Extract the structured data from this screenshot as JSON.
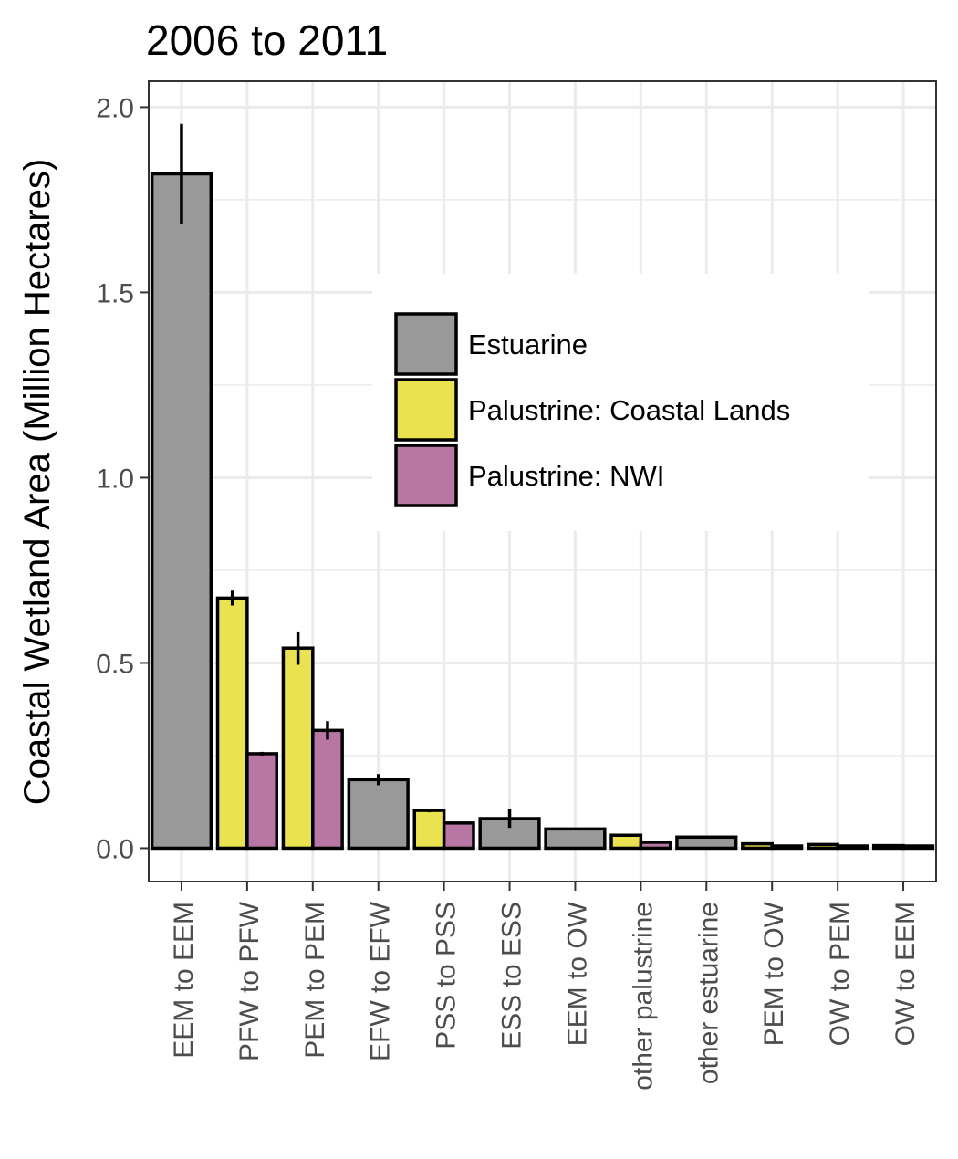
{
  "chart_data": {
    "type": "bar",
    "title": "2006 to 2011",
    "xlabel": "",
    "ylabel": "Coastal Wetland Area (Million Hectares)",
    "ylim": [
      -0.09,
      2.07
    ],
    "yticks": [
      "0.0",
      "0.5",
      "1.0",
      "1.5",
      "2.0"
    ],
    "grid": true,
    "legend_position": "center-right",
    "categories": [
      "EEM to EEM",
      "PFW to PFW",
      "PEM to PEM",
      "EFW to EFW",
      "PSS to PSS",
      "ESS to ESS",
      "EEM to OW",
      "other palustrine",
      "other estuarine",
      "PEM to OW",
      "OW to PEM",
      "OW to EEM"
    ],
    "series": [
      {
        "name": "Estuarine",
        "color": "#999999",
        "values": [
          1.82,
          null,
          null,
          0.185,
          null,
          0.08,
          0.052,
          null,
          0.03,
          null,
          null,
          null
        ],
        "errors": [
          0.135,
          null,
          null,
          0.015,
          null,
          0.025,
          null,
          null,
          null,
          null,
          null,
          null
        ]
      },
      {
        "name": "Palustrine: Coastal Lands",
        "color": "#ebe251",
        "values": [
          null,
          0.675,
          0.54,
          null,
          0.102,
          null,
          null,
          0.035,
          null,
          0.012,
          0.01,
          0.007
        ],
        "errors": [
          null,
          0.02,
          0.045,
          null,
          0.005,
          null,
          null,
          null,
          null,
          null,
          null,
          null
        ]
      },
      {
        "name": "Palustrine: NWI",
        "color": "#b876a4",
        "values": [
          null,
          0.255,
          0.318,
          null,
          0.068,
          null,
          null,
          0.016,
          null,
          0.006,
          0.006,
          0.006
        ],
        "errors": [
          null,
          0.005,
          0.025,
          null,
          null,
          null,
          null,
          null,
          null,
          null,
          null,
          null
        ]
      }
    ]
  }
}
